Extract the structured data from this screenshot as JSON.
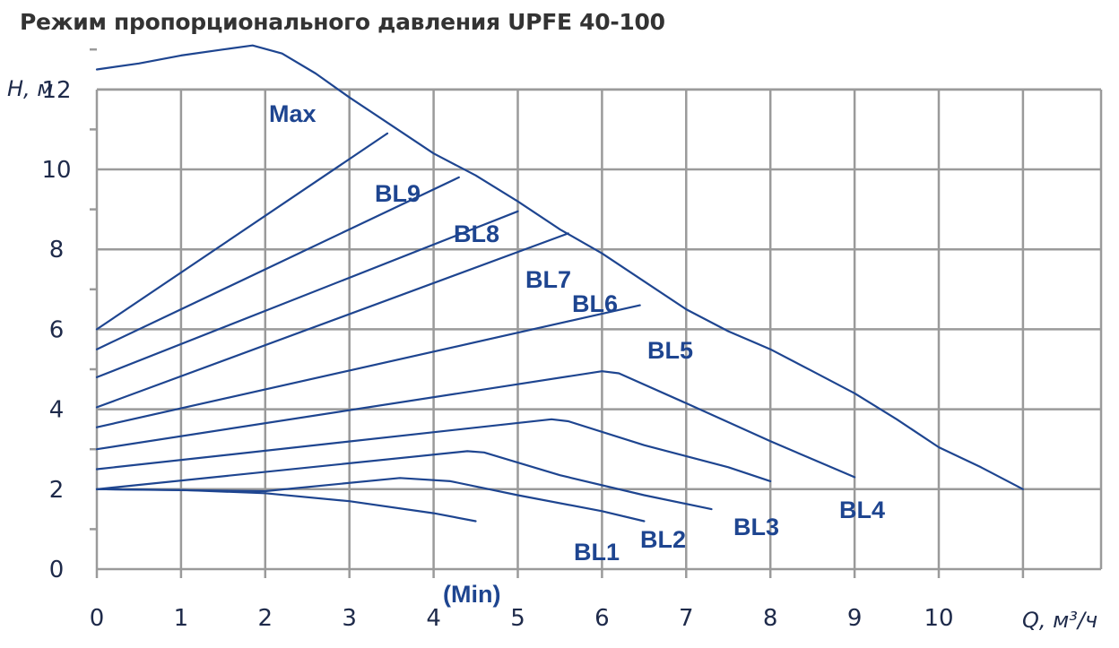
{
  "title": "Режим пропорционального давления UPFE 40-100",
  "chart_data": {
    "type": "line",
    "ylabel": "H, м",
    "xlabel": "Q, м³/ч",
    "xlim": [
      0,
      11
    ],
    "ylim": [
      0,
      13
    ],
    "x_ticks": [
      "0",
      "1",
      "2",
      "3",
      "4",
      "5",
      "6",
      "7",
      "8",
      "9",
      "10"
    ],
    "y_ticks": [
      "0",
      "2",
      "4",
      "6",
      "8",
      "10",
      "12"
    ],
    "grid": true,
    "series": [
      {
        "name": "Max",
        "points": [
          [
            0,
            12.5
          ],
          [
            0.5,
            12.65
          ],
          [
            1,
            12.85
          ],
          [
            1.5,
            13.0
          ],
          [
            1.85,
            13.1
          ],
          [
            2.2,
            12.9
          ],
          [
            2.6,
            12.4
          ],
          [
            3,
            11.8
          ],
          [
            3.5,
            11.1
          ],
          [
            4,
            10.4
          ],
          [
            4.5,
            9.85
          ],
          [
            5,
            9.2
          ],
          [
            5.5,
            8.5
          ],
          [
            6,
            7.9
          ],
          [
            6.5,
            7.2
          ],
          [
            7,
            6.5
          ],
          [
            7.5,
            5.95
          ],
          [
            8,
            5.5
          ],
          [
            8.5,
            4.95
          ],
          [
            9,
            4.4
          ],
          [
            9.5,
            3.75
          ],
          [
            10,
            3.05
          ],
          [
            10.5,
            2.55
          ],
          [
            11,
            2.0
          ]
        ]
      },
      {
        "name": "BL9",
        "points": [
          [
            0,
            6.0
          ],
          [
            3.45,
            10.9
          ]
        ]
      },
      {
        "name": "BL8",
        "points": [
          [
            0,
            5.5
          ],
          [
            4.3,
            9.8
          ]
        ]
      },
      {
        "name": "BL7",
        "points": [
          [
            0,
            4.8
          ],
          [
            5.0,
            8.95
          ]
        ]
      },
      {
        "name": "BL6",
        "points": [
          [
            0,
            4.05
          ],
          [
            5.6,
            8.4
          ]
        ]
      },
      {
        "name": "BL5",
        "points": [
          [
            0,
            3.55
          ],
          [
            6.45,
            6.6
          ]
        ]
      },
      {
        "name": "BL4",
        "points": [
          [
            0,
            3.0
          ],
          [
            6.0,
            4.95
          ],
          [
            6.2,
            4.9
          ],
          [
            7,
            4.15
          ],
          [
            8,
            3.2
          ],
          [
            9,
            2.3
          ]
        ]
      },
      {
        "name": "BL3",
        "points": [
          [
            0,
            2.5
          ],
          [
            5.4,
            3.75
          ],
          [
            5.6,
            3.7
          ],
          [
            6.5,
            3.1
          ],
          [
            7.5,
            2.55
          ],
          [
            8,
            2.2
          ]
        ]
      },
      {
        "name": "BL2",
        "points": [
          [
            0,
            2.0
          ],
          [
            4.4,
            2.95
          ],
          [
            4.6,
            2.92
          ],
          [
            5.5,
            2.35
          ],
          [
            6.5,
            1.85
          ],
          [
            7.3,
            1.5
          ]
        ]
      },
      {
        "name": "BL1",
        "points": [
          [
            0,
            2.0
          ],
          [
            2.0,
            1.95
          ],
          [
            3.6,
            2.28
          ],
          [
            4.2,
            2.2
          ],
          [
            5,
            1.85
          ],
          [
            6,
            1.45
          ],
          [
            6.5,
            1.2
          ]
        ]
      },
      {
        "name": "(Min)",
        "points": [
          [
            0,
            2.0
          ],
          [
            1,
            1.98
          ],
          [
            2,
            1.9
          ],
          [
            3,
            1.7
          ],
          [
            4,
            1.4
          ],
          [
            4.5,
            1.2
          ]
        ]
      }
    ]
  }
}
